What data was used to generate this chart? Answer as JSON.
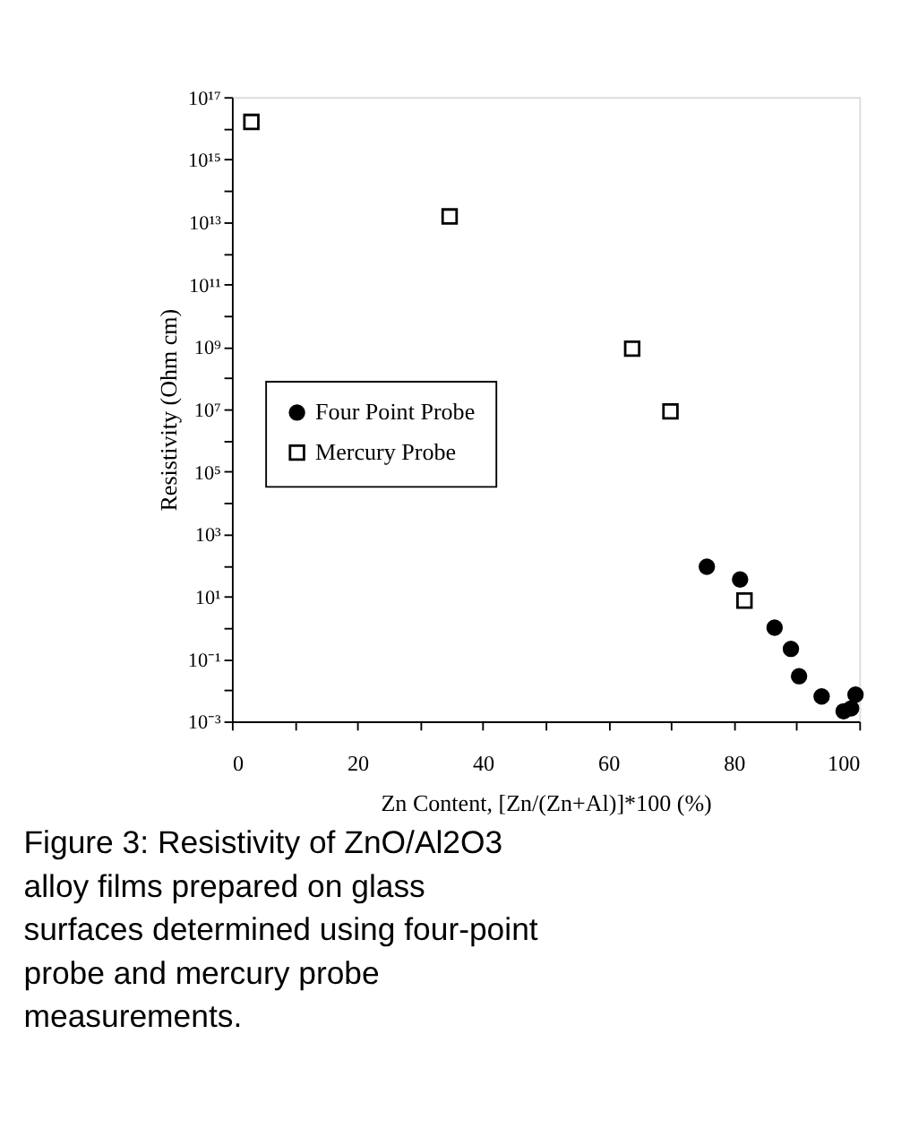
{
  "chart_data": {
    "type": "scatter",
    "xlabel": "Zn Content, [Zn/(Zn+Al)]*100 (%)",
    "ylabel": "Resistivity (Ohm cm)",
    "log": "y",
    "xlim": [
      0,
      100
    ],
    "xticks": [
      0,
      {
        "value": 10,
        "label": null
      },
      20,
      {
        "value": 30,
        "label": null
      },
      40,
      {
        "value": 50,
        "label": null
      },
      60,
      {
        "value": 70,
        "label": null
      },
      80,
      {
        "value": 90,
        "label": null
      },
      100
    ],
    "ylim": [
      0.001,
      1e+17
    ],
    "yticks": [
      {
        "value": 0.001,
        "label": "10⁻³"
      },
      {
        "value": 0.01,
        "label": null
      },
      {
        "value": 0.1,
        "label": "10⁻¹"
      },
      {
        "value": 1,
        "label": null
      },
      {
        "value": 10,
        "label": "10¹"
      },
      {
        "value": 100,
        "label": null
      },
      {
        "value": 1000,
        "label": "10³"
      },
      {
        "value": 10000,
        "label": null
      },
      {
        "value": 100000,
        "label": "10⁵"
      },
      {
        "value": 1000000,
        "label": null
      },
      {
        "value": 10000000,
        "label": "10⁷"
      },
      {
        "value": 100000000,
        "label": null
      },
      {
        "value": 1000000000,
        "label": "10⁹"
      },
      {
        "value": 10000000000,
        "label": null
      },
      {
        "value": 100000000000,
        "label": "10¹¹"
      },
      {
        "value": 1000000000000,
        "label": null
      },
      {
        "value": 10000000000000,
        "label": "10¹³"
      },
      {
        "value": 100000000000000,
        "label": null
      },
      {
        "value": 1000000000000000,
        "label": "10¹⁵"
      },
      {
        "value": 10000000000000000,
        "label": null
      },
      {
        "value": 100000000000000000,
        "label": "10¹⁷"
      }
    ],
    "grid": false,
    "legend": "left",
    "series": [
      {
        "name": "Four Point Probe",
        "color": "#000000",
        "marker": "circle",
        "x": [
          75.7,
          81.0,
          86.5,
          89.1,
          90.4,
          94.0,
          97.5,
          98.7,
          99.4
        ],
        "values": [
          90,
          35,
          1,
          0.21,
          0.028,
          0.0063,
          0.0021,
          0.0026,
          0.0072
        ]
      },
      {
        "name": "Mercury Probe",
        "color": "#000000",
        "marker": "square",
        "x": [
          3.1,
          34.7,
          63.8,
          69.9,
          81.7
        ],
        "values": [
          1.6e+16,
          15000000000000.0,
          870000000.0,
          8500000.0,
          7.4
        ]
      }
    ],
    "annotations": [
      "Figure 3: Resistivity of ZnO/Al2O3 alloy films prepared on glass surfaces determined using four-point probe and mercury probe measurements."
    ]
  }
}
